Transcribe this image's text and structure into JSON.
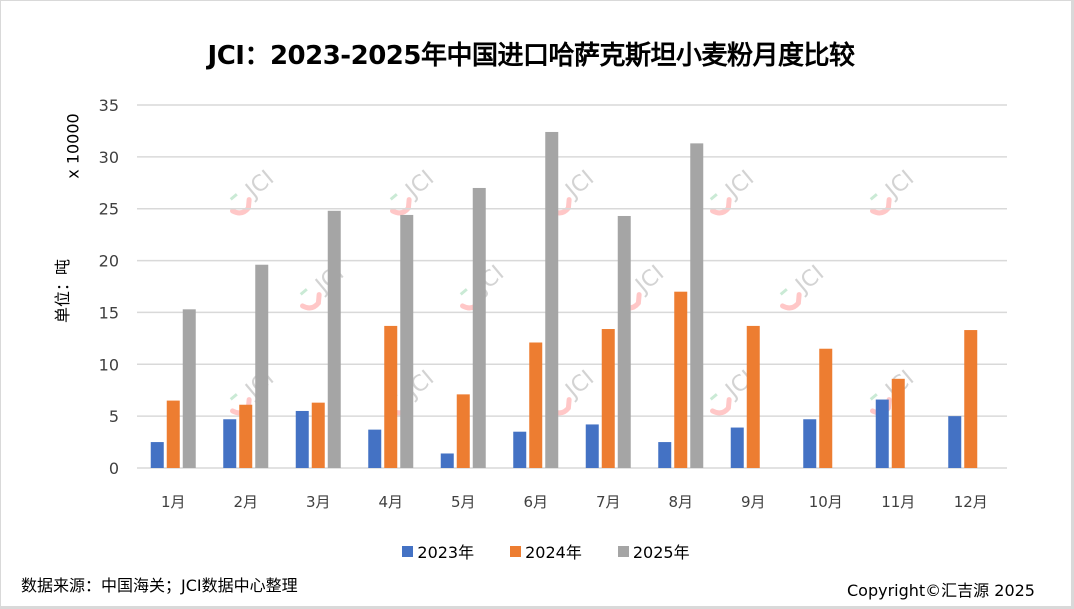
{
  "title": "JCI：2023-2025年中国进口哈萨克斯坦小麦粉月度比较",
  "watermark_text": "JCI",
  "footer": {
    "source": "数据来源：中国海关；JCI数据中心整理",
    "copyright": "Copyright©汇吉源 2025"
  },
  "chart_data": {
    "type": "bar",
    "title": "JCI：2023-2025年中国进口哈萨克斯坦小麦粉月度比较",
    "xlabel": "",
    "ylabel": "单位：吨",
    "yscale_label": "x 10000",
    "ylim": [
      0,
      35
    ],
    "yticks": [
      "0",
      "5",
      "10",
      "15",
      "20",
      "25",
      "30",
      "35"
    ],
    "grid": true,
    "legend_position": "bottom",
    "categories": [
      "1月",
      "2月",
      "3月",
      "4月",
      "5月",
      "6月",
      "7月",
      "8月",
      "9月",
      "10月",
      "11月",
      "12月"
    ],
    "series": [
      {
        "name": "2023年",
        "color": "#4472c4",
        "values": [
          2.5,
          4.7,
          5.5,
          3.7,
          1.4,
          3.5,
          4.2,
          2.5,
          3.9,
          4.7,
          6.6,
          5.0
        ]
      },
      {
        "name": "2024年",
        "color": "#ed7d31",
        "values": [
          6.5,
          6.1,
          6.3,
          13.7,
          7.1,
          12.1,
          13.4,
          17.0,
          13.7,
          11.5,
          8.6,
          13.3
        ]
      },
      {
        "name": "2025年",
        "color": "#a5a5a5",
        "values": [
          15.3,
          19.6,
          24.8,
          24.4,
          27.0,
          32.4,
          24.3,
          31.3,
          null,
          null,
          null,
          null
        ]
      }
    ]
  }
}
